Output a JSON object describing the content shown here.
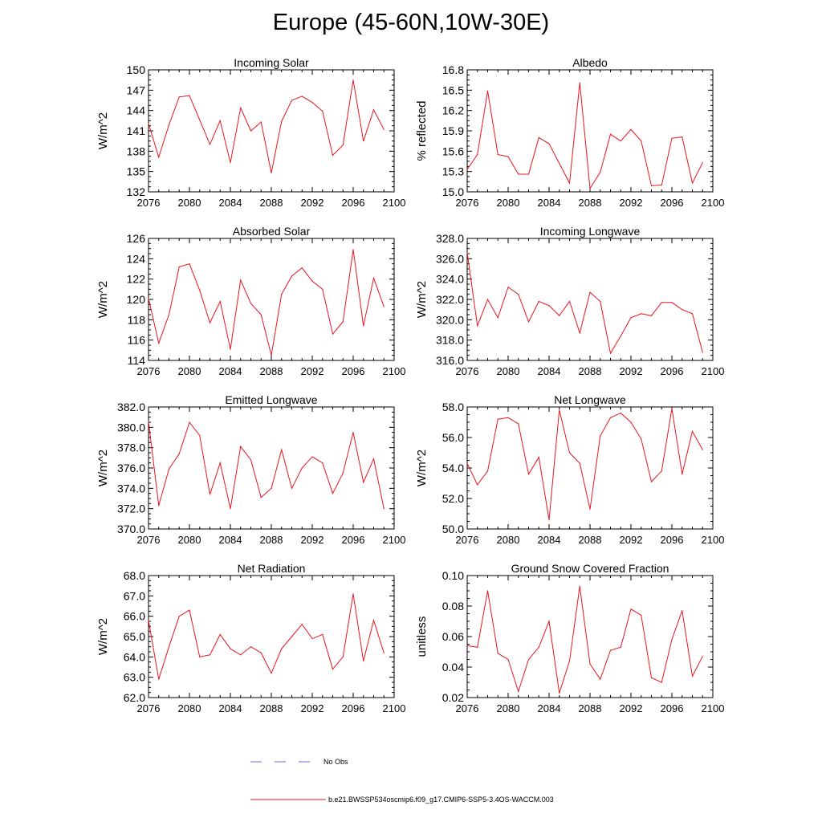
{
  "title": "Europe (45-60N,10W-30E)",
  "legend": {
    "obs_label": "No Obs",
    "obs_color": "#6a6ad0",
    "model_label": "b.e21.BWSSP534oscmip6.f09_g17.CMIP6-SSP5-3.4OS-WACCM.003",
    "model_color": "#e8141e"
  },
  "chart_data": [
    {
      "type": "line",
      "title": "Incoming Solar",
      "ylabel": "W/m^2",
      "xlim": [
        2076,
        2100
      ],
      "ylim": [
        132,
        150
      ],
      "xticks": [
        2076,
        2080,
        2084,
        2088,
        2092,
        2096,
        2100
      ],
      "xtick_labels": [
        "2076",
        "2080",
        "2084",
        "2088",
        "2092",
        "2096",
        "2100"
      ],
      "yticks": [
        132,
        135,
        138,
        141,
        144,
        147,
        150
      ],
      "ytick_labels": [
        "132",
        "135",
        "138",
        "141",
        "144",
        "147",
        "150"
      ],
      "x": [
        2076,
        2077,
        2078,
        2079,
        2080,
        2081,
        2082,
        2083,
        2084,
        2085,
        2086,
        2087,
        2088,
        2089,
        2090,
        2091,
        2092,
        2093,
        2094,
        2095,
        2096,
        2097,
        2098,
        2099
      ],
      "values": [
        142.1,
        137.1,
        141.9,
        146.0,
        146.2,
        142.6,
        139.0,
        142.5,
        136.3,
        144.4,
        141.0,
        142.3,
        134.8,
        142.4,
        145.5,
        146.1,
        145.2,
        143.9,
        137.4,
        138.9,
        148.5,
        139.5,
        144.1,
        141.2
      ]
    },
    {
      "type": "line",
      "title": "Albedo",
      "ylabel": "% reflected",
      "xlim": [
        2076,
        2100
      ],
      "ylim": [
        15.0,
        16.8
      ],
      "xticks": [
        2076,
        2080,
        2084,
        2088,
        2092,
        2096,
        2100
      ],
      "xtick_labels": [
        "2076",
        "2080",
        "2084",
        "2088",
        "2092",
        "2096",
        "2100"
      ],
      "yticks": [
        15.0,
        15.3,
        15.6,
        15.9,
        16.2,
        16.5,
        16.8
      ],
      "ytick_labels": [
        "15.0",
        "15.3",
        "15.6",
        "15.9",
        "16.2",
        "16.5",
        "16.8"
      ],
      "x": [
        2076,
        2077,
        2078,
        2079,
        2080,
        2081,
        2082,
        2083,
        2084,
        2085,
        2086,
        2087,
        2088,
        2089,
        2090,
        2091,
        2092,
        2093,
        2094,
        2095,
        2096,
        2097,
        2098,
        2099
      ],
      "values": [
        15.33,
        15.55,
        16.49,
        15.55,
        15.52,
        15.26,
        15.26,
        15.8,
        15.71,
        15.42,
        15.13,
        16.61,
        15.05,
        15.29,
        15.85,
        15.75,
        15.92,
        15.75,
        15.09,
        15.1,
        15.79,
        15.81,
        15.13,
        15.43
      ]
    },
    {
      "type": "line",
      "title": "Absorbed Solar",
      "ylabel": "W/m^2",
      "xlim": [
        2076,
        2100
      ],
      "ylim": [
        114,
        126
      ],
      "xticks": [
        2076,
        2080,
        2084,
        2088,
        2092,
        2096,
        2100
      ],
      "xtick_labels": [
        "2076",
        "2080",
        "2084",
        "2088",
        "2092",
        "2096",
        "2100"
      ],
      "yticks": [
        114,
        116,
        118,
        120,
        122,
        124,
        126
      ],
      "ytick_labels": [
        "114",
        "116",
        "118",
        "120",
        "122",
        "124",
        "126"
      ],
      "x": [
        2076,
        2077,
        2078,
        2079,
        2080,
        2081,
        2082,
        2083,
        2084,
        2085,
        2086,
        2087,
        2088,
        2089,
        2090,
        2091,
        2092,
        2093,
        2094,
        2095,
        2096,
        2097,
        2098,
        2099
      ],
      "values": [
        120.1,
        115.7,
        118.5,
        123.2,
        123.5,
        120.9,
        117.7,
        119.8,
        115.1,
        121.9,
        119.6,
        118.5,
        114.5,
        120.5,
        122.3,
        123.1,
        121.8,
        121.0,
        116.6,
        117.8,
        124.9,
        117.4,
        122.1,
        119.3
      ]
    },
    {
      "type": "line",
      "title": "Incoming Longwave",
      "ylabel": "W/m^2",
      "xlim": [
        2076,
        2100
      ],
      "ylim": [
        316.0,
        328.0
      ],
      "xticks": [
        2076,
        2080,
        2084,
        2088,
        2092,
        2096,
        2100
      ],
      "xtick_labels": [
        "2076",
        "2080",
        "2084",
        "2088",
        "2092",
        "2096",
        "2100"
      ],
      "yticks": [
        316.0,
        318.0,
        320.0,
        322.0,
        324.0,
        326.0,
        328.0
      ],
      "ytick_labels": [
        "316.0",
        "318.0",
        "320.0",
        "322.0",
        "324.0",
        "326.0",
        "328.0"
      ],
      "x": [
        2076,
        2077,
        2078,
        2079,
        2080,
        2081,
        2082,
        2083,
        2084,
        2085,
        2086,
        2087,
        2088,
        2089,
        2090,
        2091,
        2092,
        2093,
        2094,
        2095,
        2096,
        2097,
        2098,
        2099
      ],
      "values": [
        326.6,
        319.4,
        322.0,
        320.2,
        323.2,
        322.5,
        319.8,
        321.8,
        321.4,
        320.4,
        321.8,
        318.7,
        322.7,
        321.8,
        316.7,
        318.4,
        320.2,
        320.6,
        320.4,
        321.7,
        321.7,
        321.0,
        320.6,
        316.8
      ]
    },
    {
      "type": "line",
      "title": "Emitted Longwave",
      "ylabel": "W/m^2",
      "xlim": [
        2076,
        2100
      ],
      "ylim": [
        370.0,
        382.0
      ],
      "xticks": [
        2076,
        2080,
        2084,
        2088,
        2092,
        2096,
        2100
      ],
      "xtick_labels": [
        "2076",
        "2080",
        "2084",
        "2088",
        "2092",
        "2096",
        "2100"
      ],
      "yticks": [
        370.0,
        372.0,
        374.0,
        376.0,
        378.0,
        380.0,
        382.0
      ],
      "ytick_labels": [
        "370.0",
        "372.0",
        "374.0",
        "376.0",
        "378.0",
        "380.0",
        "382.0"
      ],
      "x": [
        2076,
        2077,
        2078,
        2079,
        2080,
        2081,
        2082,
        2083,
        2084,
        2085,
        2086,
        2087,
        2088,
        2089,
        2090,
        2091,
        2092,
        2093,
        2094,
        2095,
        2096,
        2097,
        2098,
        2099
      ],
      "values": [
        380.6,
        372.3,
        375.9,
        377.4,
        380.5,
        379.2,
        373.4,
        376.5,
        372.0,
        378.1,
        376.8,
        373.1,
        374.0,
        377.8,
        374.0,
        376.0,
        377.1,
        376.5,
        373.5,
        375.5,
        379.5,
        374.6,
        376.9,
        372.0
      ]
    },
    {
      "type": "line",
      "title": "Net Longwave",
      "ylabel": "W/m^2",
      "xlim": [
        2076,
        2100
      ],
      "ylim": [
        50.0,
        58.0
      ],
      "xticks": [
        2076,
        2080,
        2084,
        2088,
        2092,
        2096,
        2100
      ],
      "xtick_labels": [
        "2076",
        "2080",
        "2084",
        "2088",
        "2092",
        "2096",
        "2100"
      ],
      "yticks": [
        50.0,
        52.0,
        54.0,
        56.0,
        58.0
      ],
      "ytick_labels": [
        "50.0",
        "52.0",
        "54.0",
        "56.0",
        "58.0"
      ],
      "x": [
        2076,
        2077,
        2078,
        2079,
        2080,
        2081,
        2082,
        2083,
        2084,
        2085,
        2086,
        2087,
        2088,
        2089,
        2090,
        2091,
        2092,
        2093,
        2094,
        2095,
        2096,
        2097,
        2098,
        2099
      ],
      "values": [
        54.3,
        52.9,
        53.8,
        57.2,
        57.3,
        56.9,
        53.6,
        54.7,
        50.6,
        57.8,
        55.0,
        54.3,
        51.3,
        56.1,
        57.3,
        57.6,
        57.0,
        55.9,
        53.1,
        53.8,
        57.9,
        53.6,
        56.4,
        55.2
      ]
    },
    {
      "type": "line",
      "title": "Net Radiation",
      "ylabel": "W/m^2",
      "xlim": [
        2076,
        2100
      ],
      "ylim": [
        62.0,
        68.0
      ],
      "xticks": [
        2076,
        2080,
        2084,
        2088,
        2092,
        2096,
        2100
      ],
      "xtick_labels": [
        "2076",
        "2080",
        "2084",
        "2088",
        "2092",
        "2096",
        "2100"
      ],
      "yticks": [
        62.0,
        63.0,
        64.0,
        65.0,
        66.0,
        67.0,
        68.0
      ],
      "ytick_labels": [
        "62.0",
        "63.0",
        "64.0",
        "65.0",
        "66.0",
        "67.0",
        "68.0"
      ],
      "x": [
        2076,
        2077,
        2078,
        2079,
        2080,
        2081,
        2082,
        2083,
        2084,
        2085,
        2086,
        2087,
        2088,
        2089,
        2090,
        2091,
        2092,
        2093,
        2094,
        2095,
        2096,
        2097,
        2098,
        2099
      ],
      "values": [
        65.8,
        62.9,
        64.5,
        66.0,
        66.3,
        64.0,
        64.1,
        65.1,
        64.4,
        64.1,
        64.5,
        64.2,
        63.2,
        64.4,
        65.0,
        65.6,
        64.9,
        65.1,
        63.4,
        64.0,
        67.1,
        63.8,
        65.8,
        64.2
      ]
    },
    {
      "type": "line",
      "title": "Ground Snow Covered Fraction",
      "ylabel": "unitless",
      "xlim": [
        2076,
        2100
      ],
      "ylim": [
        0.02,
        0.1
      ],
      "xticks": [
        2076,
        2080,
        2084,
        2088,
        2092,
        2096,
        2100
      ],
      "xtick_labels": [
        "2076",
        "2080",
        "2084",
        "2088",
        "2092",
        "2096",
        "2100"
      ],
      "yticks": [
        0.02,
        0.04,
        0.06,
        0.08,
        0.1
      ],
      "ytick_labels": [
        "0.02",
        "0.04",
        "0.06",
        "0.08",
        "0.10"
      ],
      "x": [
        2076,
        2077,
        2078,
        2079,
        2080,
        2081,
        2082,
        2083,
        2084,
        2085,
        2086,
        2087,
        2088,
        2089,
        2090,
        2091,
        2092,
        2093,
        2094,
        2095,
        2096,
        2097,
        2098,
        2099
      ],
      "values": [
        0.054,
        0.053,
        0.09,
        0.049,
        0.045,
        0.024,
        0.045,
        0.053,
        0.07,
        0.023,
        0.044,
        0.093,
        0.042,
        0.032,
        0.051,
        0.053,
        0.078,
        0.074,
        0.033,
        0.03,
        0.058,
        0.077,
        0.034,
        0.047
      ]
    }
  ]
}
